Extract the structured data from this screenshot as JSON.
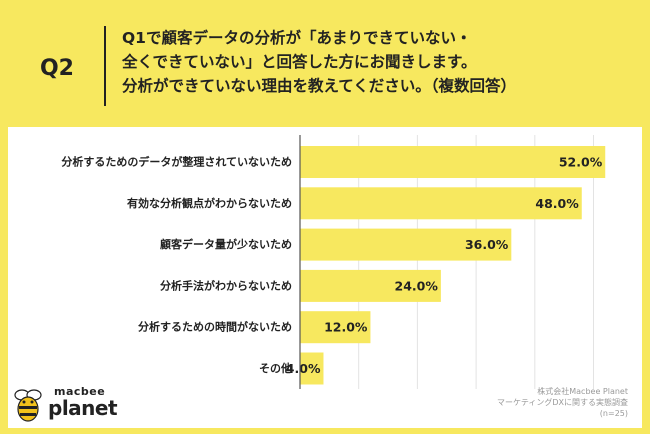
{
  "header": {
    "qlabel": "Q2",
    "question_lines": [
      "Q1で顧客データの分析が「あまりできていない・",
      "全くできていない」と回答した方にお聞きします。",
      "分析ができていない理由を教えてください。（複数回答）"
    ]
  },
  "chart_data": {
    "type": "bar",
    "orientation": "horizontal",
    "categories": [
      "分析するためのデータが整理されていないため",
      "有効な分析観点がわからないため",
      "顧客データ量が少ないため",
      "分析手法がわからないため",
      "分析するための時間がないため",
      "その他"
    ],
    "values": [
      52.0,
      48.0,
      36.0,
      24.0,
      12.0,
      4.0
    ],
    "value_labels": [
      "52.0%",
      "48.0%",
      "36.0%",
      "24.0%",
      "12.0%",
      "4.0%"
    ],
    "xlim": [
      0,
      60
    ],
    "bar_color": "#f7e85f",
    "grid_color": "#e3e3e3"
  },
  "logo": {
    "line1": "macbee",
    "line2": "planet"
  },
  "source": {
    "lines": [
      "株式会社Macbee Planet",
      "マーケティングDXに関する実態調査",
      "(n=25)"
    ]
  },
  "colors": {
    "background": "#f7e85f",
    "panel": "#ffffff",
    "text": "#222222"
  }
}
